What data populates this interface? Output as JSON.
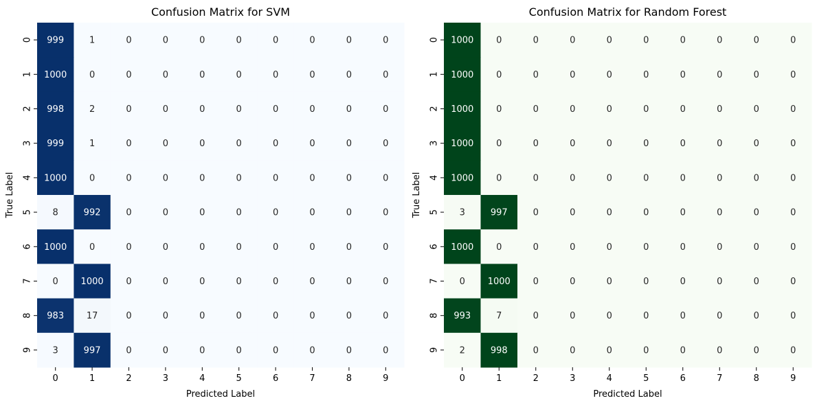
{
  "chart_data": [
    {
      "type": "heatmap",
      "title": "Confusion Matrix for SVM",
      "xlabel": "Predicted Label",
      "ylabel": "True Label",
      "x_categories": [
        "0",
        "1",
        "2",
        "3",
        "4",
        "5",
        "6",
        "7",
        "8",
        "9"
      ],
      "y_categories": [
        "0",
        "1",
        "2",
        "3",
        "4",
        "5",
        "6",
        "7",
        "8",
        "9"
      ],
      "colormap": "Blues",
      "color_low": "#f7fbff",
      "color_high": "#08306b",
      "value_range": [
        0,
        1000
      ],
      "colorbar": false,
      "values": [
        [
          999,
          1,
          0,
          0,
          0,
          0,
          0,
          0,
          0,
          0
        ],
        [
          1000,
          0,
          0,
          0,
          0,
          0,
          0,
          0,
          0,
          0
        ],
        [
          998,
          2,
          0,
          0,
          0,
          0,
          0,
          0,
          0,
          0
        ],
        [
          999,
          1,
          0,
          0,
          0,
          0,
          0,
          0,
          0,
          0
        ],
        [
          1000,
          0,
          0,
          0,
          0,
          0,
          0,
          0,
          0,
          0
        ],
        [
          8,
          992,
          0,
          0,
          0,
          0,
          0,
          0,
          0,
          0
        ],
        [
          1000,
          0,
          0,
          0,
          0,
          0,
          0,
          0,
          0,
          0
        ],
        [
          0,
          1000,
          0,
          0,
          0,
          0,
          0,
          0,
          0,
          0
        ],
        [
          983,
          17,
          0,
          0,
          0,
          0,
          0,
          0,
          0,
          0
        ],
        [
          3,
          997,
          0,
          0,
          0,
          0,
          0,
          0,
          0,
          0
        ]
      ]
    },
    {
      "type": "heatmap",
      "title": "Confusion Matrix for Random Forest",
      "xlabel": "Predicted Label",
      "ylabel": "True Label",
      "x_categories": [
        "0",
        "1",
        "2",
        "3",
        "4",
        "5",
        "6",
        "7",
        "8",
        "9"
      ],
      "y_categories": [
        "0",
        "1",
        "2",
        "3",
        "4",
        "5",
        "6",
        "7",
        "8",
        "9"
      ],
      "colormap": "Greens",
      "color_low": "#f7fcf5",
      "color_high": "#00441b",
      "value_range": [
        0,
        1000
      ],
      "colorbar": false,
      "values": [
        [
          1000,
          0,
          0,
          0,
          0,
          0,
          0,
          0,
          0,
          0
        ],
        [
          1000,
          0,
          0,
          0,
          0,
          0,
          0,
          0,
          0,
          0
        ],
        [
          1000,
          0,
          0,
          0,
          0,
          0,
          0,
          0,
          0,
          0
        ],
        [
          1000,
          0,
          0,
          0,
          0,
          0,
          0,
          0,
          0,
          0
        ],
        [
          1000,
          0,
          0,
          0,
          0,
          0,
          0,
          0,
          0,
          0
        ],
        [
          3,
          997,
          0,
          0,
          0,
          0,
          0,
          0,
          0,
          0
        ],
        [
          1000,
          0,
          0,
          0,
          0,
          0,
          0,
          0,
          0,
          0
        ],
        [
          0,
          1000,
          0,
          0,
          0,
          0,
          0,
          0,
          0,
          0
        ],
        [
          993,
          7,
          0,
          0,
          0,
          0,
          0,
          0,
          0,
          0
        ],
        [
          2,
          998,
          0,
          0,
          0,
          0,
          0,
          0,
          0,
          0
        ]
      ]
    }
  ]
}
